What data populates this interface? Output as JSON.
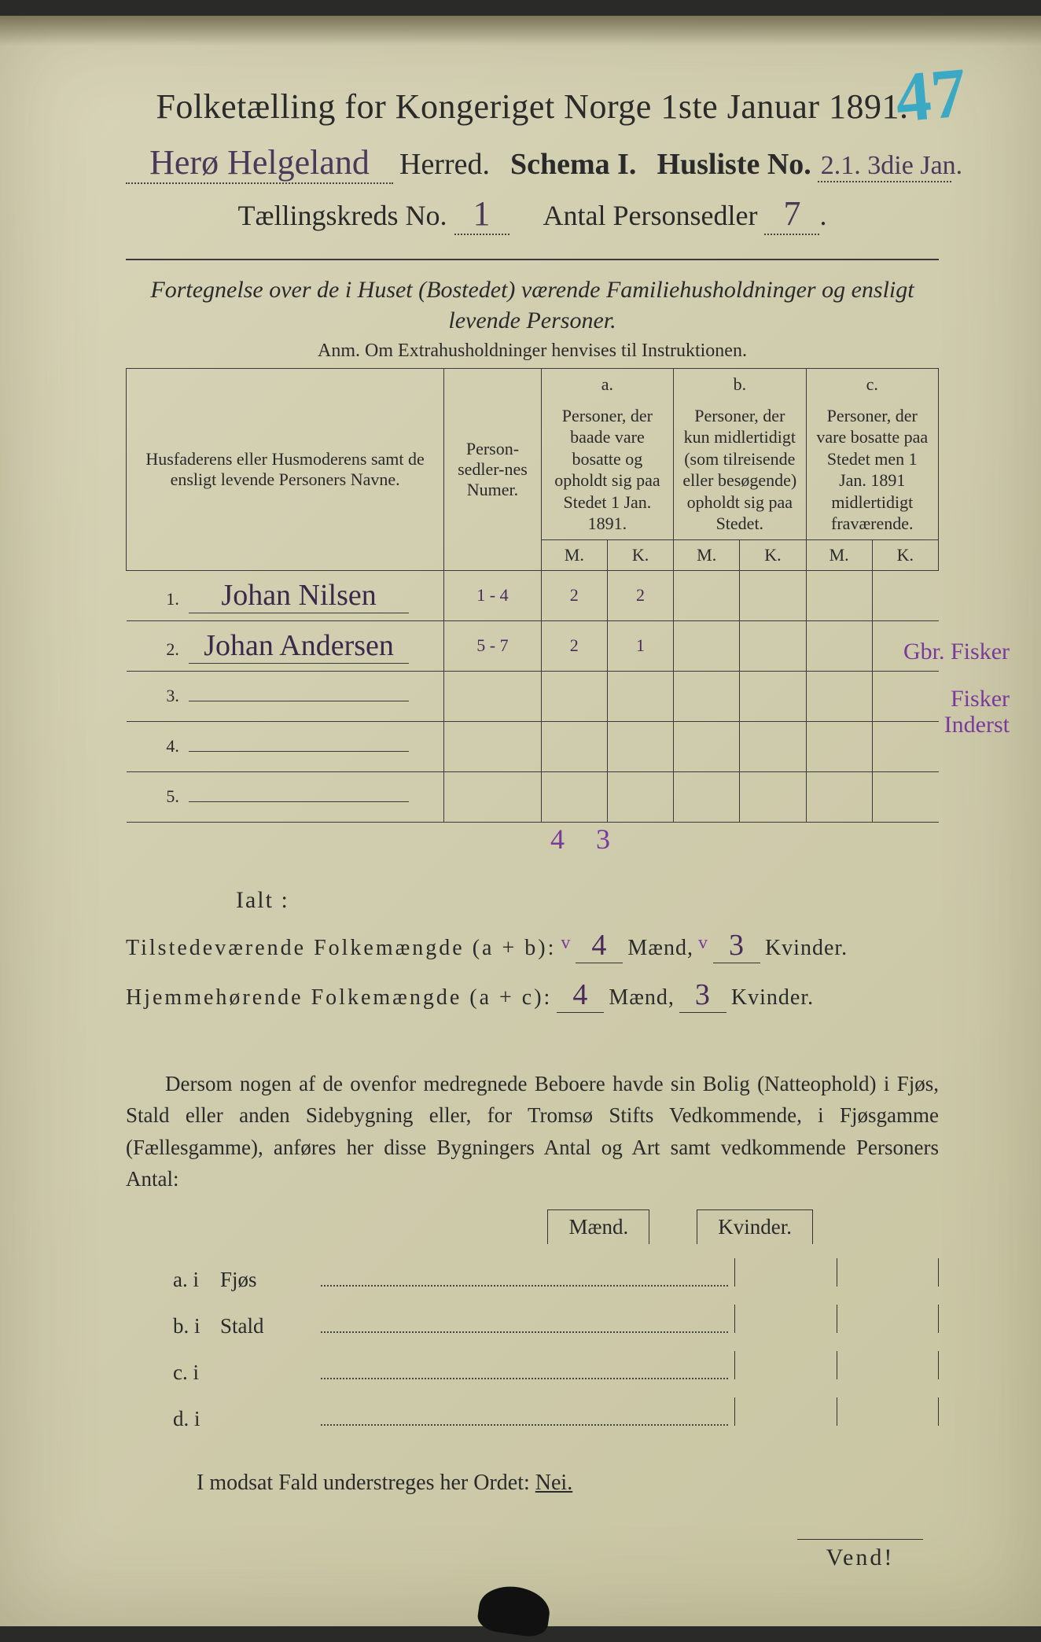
{
  "corner_number": "47",
  "title": "Folketælling for Kongeriget Norge 1ste Januar 1891.",
  "herred_hand": "Herø Helgeland",
  "herred_label": "Herred.",
  "schema_label": "Schema I.",
  "husliste_label": "Husliste No.",
  "husliste_hand": "2.1. 3die Jan.",
  "kreds_label": "Tællingskreds No.",
  "kreds_hand": "1",
  "antal_label": "Antal Personsedler",
  "antal_hand": "7",
  "intro": "Fortegnelse over de i Huset (Bostedet) værende Familiehusholdninger og ensligt levende Personer.",
  "anm": "Anm. Om Extrahusholdninger henvises til Instruktionen.",
  "headers": {
    "name": "Husfaderens eller Husmoderens samt de ensligt levende Personers Navne.",
    "num": "Person-sedler-nes Numer.",
    "a_top": "a.",
    "a": "Personer, der baade vare bosatte og opholdt sig paa Stedet 1 Jan. 1891.",
    "b_top": "b.",
    "b": "Personer, der kun midlertidigt (som tilreisende eller besøgende) opholdt sig paa Stedet.",
    "c_top": "c.",
    "c": "Personer, der vare bosatte paa Stedet men 1 Jan. 1891 midlertidigt fraværende.",
    "m": "M.",
    "k": "K."
  },
  "rows": [
    {
      "n": "1.",
      "name": "Johan Nilsen",
      "num": "1 - 4",
      "am": "2",
      "ak": "2",
      "note": "Gbr. Fisker"
    },
    {
      "n": "2.",
      "name": "Johan Andersen",
      "num": "5 - 7",
      "am": "2",
      "ak": "1",
      "note": "Fisker Inderst"
    },
    {
      "n": "3.",
      "name": "",
      "num": "",
      "am": "",
      "ak": "",
      "note": ""
    },
    {
      "n": "4.",
      "name": "",
      "num": "",
      "am": "",
      "ak": "",
      "note": ""
    },
    {
      "n": "5.",
      "name": "",
      "num": "",
      "am": "",
      "ak": "",
      "note": ""
    }
  ],
  "ialt_label": "Ialt :",
  "ialt_m": "4",
  "ialt_k": "3",
  "tilstede_label": "Tilstedeværende Folkemængde (a + b):",
  "tilstede_m": "4",
  "tilstede_k": "3",
  "hjemme_label": "Hjemmehørende Folkemængde (a + c):",
  "hjemme_m": "4",
  "hjemme_k": "3",
  "maend": "Mænd,",
  "kvinder": "Kvinder.",
  "para": "Dersom nogen af de ovenfor medregnede Beboere havde sin Bolig (Natteophold) i Fjøs, Stald eller anden Sidebygning eller, for Tromsø Stifts Vedkommende, i Fjøsgamme (Fællesgamme), anføres her disse Bygningers Antal og Art samt vedkommende Personers Antal:",
  "mk_m": "Mænd.",
  "mk_k": "Kvinder.",
  "outbuildings": [
    {
      "l": "a.  i",
      "t": "Fjøs"
    },
    {
      "l": "b.  i",
      "t": "Stald"
    },
    {
      "l": "c.  i",
      "t": ""
    },
    {
      "l": "d.  i",
      "t": ""
    }
  ],
  "nei_line_pre": "I modsat Fald understreges her Ordet: ",
  "nei": "Nei.",
  "vend": "Vend!"
}
